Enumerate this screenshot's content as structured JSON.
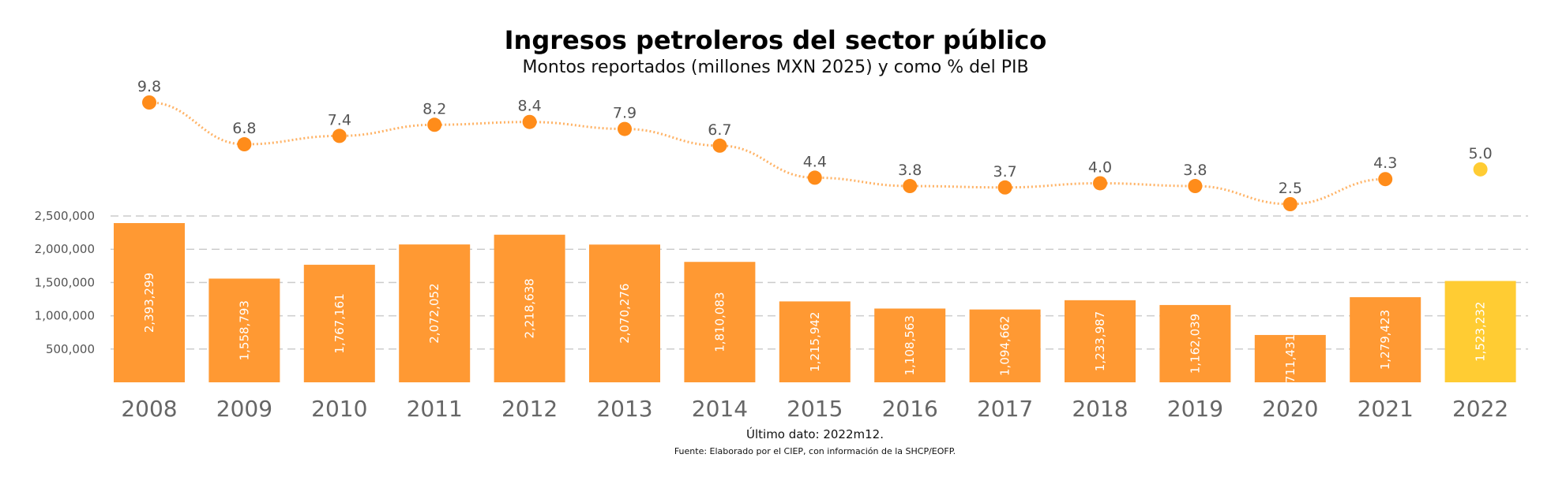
{
  "header": {
    "title": "Ingresos petroleros del sector público",
    "subtitle": "Montos reportados (millones MXN 2025) y como % del PIB"
  },
  "footer": {
    "note": "Último dato: 2022m12.",
    "source": "Fuente: Elaborado por el CIEP, con información de la SHCP/EOFP."
  },
  "colors": {
    "bar": "#FF9933",
    "bar_last": "#FFCC33",
    "line": "#FF8C1A",
    "point_last": "#FFCC33",
    "grid": "#cccccc"
  },
  "chart_data": {
    "type": "bar",
    "categories": [
      "2008",
      "2009",
      "2010",
      "2011",
      "2012",
      "2013",
      "2014",
      "2015",
      "2016",
      "2017",
      "2018",
      "2019",
      "2020",
      "2021",
      "2022"
    ],
    "values": [
      2393299,
      1558793,
      1767161,
      2072052,
      2218638,
      2070276,
      1810083,
      1215942,
      1108563,
      1094662,
      1233987,
      1162039,
      711431,
      1279423,
      1523232
    ],
    "bar_labels": [
      "2,393,299",
      "1,558,793",
      "1,767,161",
      "2,072,052",
      "2,218,638",
      "2,070,276",
      "1,810,083",
      "1,215,942",
      "1,108,563",
      "1,094,662",
      "1,233,987",
      "1,162,039",
      "711,431",
      "1,279,423",
      "1,523,232"
    ],
    "yticks": [
      500000,
      1000000,
      1500000,
      2000000,
      2500000
    ],
    "ytick_labels": [
      "500,000",
      "1,000,000",
      "1,500,000",
      "2,000,000",
      "2,500,000"
    ],
    "ylim": [
      0,
      2500000
    ],
    "grid": true,
    "pct_series": {
      "type": "line",
      "values": [
        9.8,
        6.8,
        7.4,
        8.2,
        8.4,
        7.9,
        6.7,
        4.4,
        3.8,
        3.7,
        4.0,
        3.8,
        2.5,
        4.3,
        5.0
      ],
      "labels": [
        "9.8",
        "6.8",
        "7.4",
        "8.2",
        "8.4",
        "7.9",
        "6.7",
        "4.4",
        "3.8",
        "3.7",
        "4.0",
        "3.8",
        "2.5",
        "4.3",
        "5.0"
      ]
    }
  }
}
